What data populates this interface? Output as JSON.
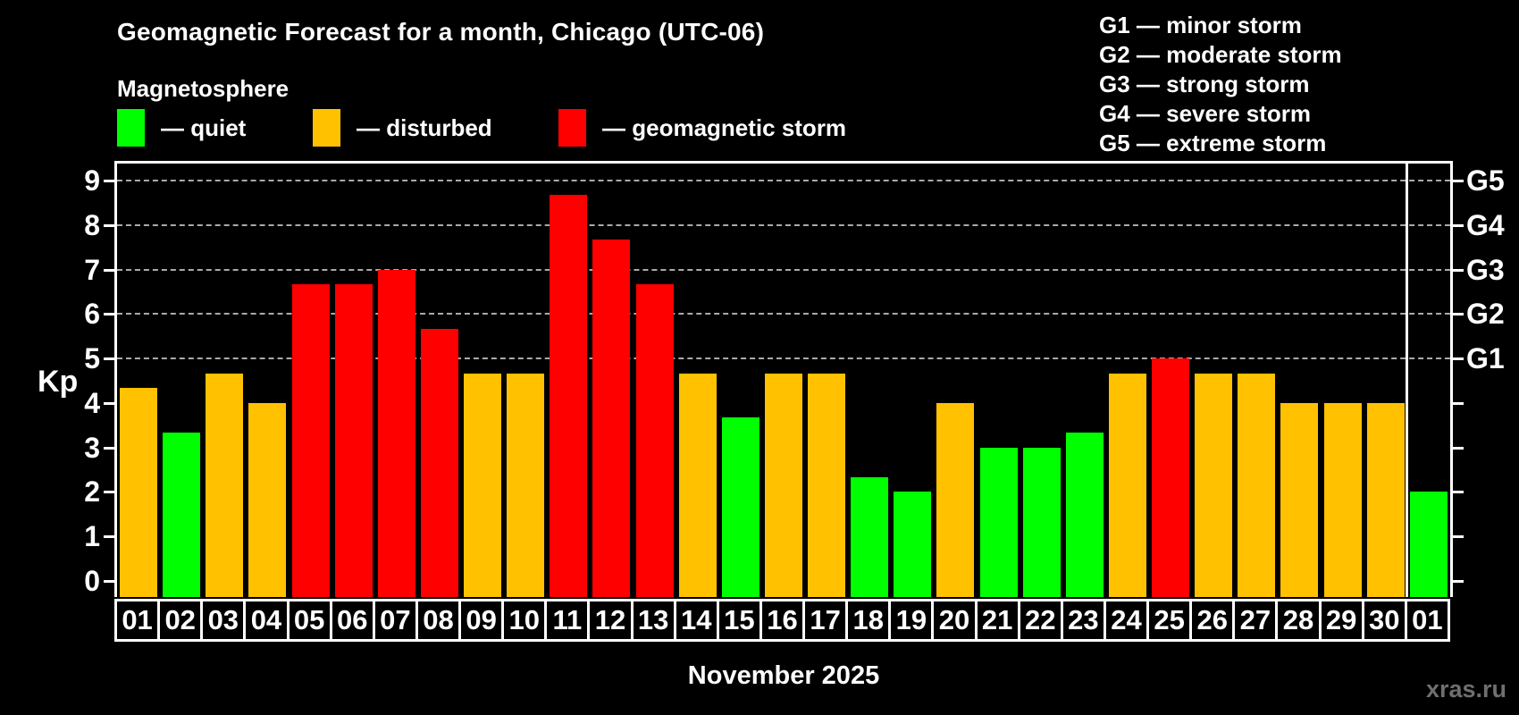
{
  "subtitle": "Magnetosphere",
  "legend": {
    "quiet_label": "— quiet",
    "disturbed_label": "— disturbed",
    "storm_label": "— geomagnetic storm"
  },
  "g_legend": [
    "G1 — minor storm",
    "G2 — moderate storm",
    "G3 — strong storm",
    "G4 — severe storm",
    "G5 — extreme storm"
  ],
  "colors": {
    "quiet": "#00ff00",
    "disturbed": "#ffc100",
    "storm": "#ff0000",
    "grid": "#aaaaaa",
    "axis": "#ffffff",
    "watermark": "#6f6f6f"
  },
  "watermark": "xras.ru",
  "chart_data": {
    "type": "bar",
    "title": "Geomagnetic Forecast for a month, Chicago (UTC-06)",
    "ylabel": "Kp",
    "xlabel": "November 2025",
    "ylim": [
      0,
      9
    ],
    "grid": "dashed horizontal at Kp 5-9 only",
    "legend_position": "top",
    "y_ticks": [
      0,
      1,
      2,
      3,
      4,
      5,
      6,
      7,
      8,
      9
    ],
    "g_levels": [
      {
        "label": "G1",
        "kp": 5
      },
      {
        "label": "G2",
        "kp": 6
      },
      {
        "label": "G3",
        "kp": 7
      },
      {
        "label": "G4",
        "kp": 8
      },
      {
        "label": "G5",
        "kp": 9
      }
    ],
    "categories": [
      "01",
      "02",
      "03",
      "04",
      "05",
      "06",
      "07",
      "08",
      "09",
      "10",
      "11",
      "12",
      "13",
      "14",
      "15",
      "16",
      "17",
      "18",
      "19",
      "20",
      "21",
      "22",
      "23",
      "24",
      "25",
      "26",
      "27",
      "28",
      "29",
      "30",
      "01"
    ],
    "values": [
      4.33,
      3.33,
      4.67,
      4.0,
      6.67,
      6.67,
      7.0,
      5.67,
      4.67,
      4.67,
      8.67,
      7.67,
      6.67,
      4.67,
      3.67,
      4.67,
      4.67,
      2.33,
      2.0,
      4.0,
      3.0,
      3.0,
      3.33,
      4.67,
      5.0,
      4.67,
      4.67,
      4.0,
      4.0,
      4.0,
      2.0
    ],
    "statuses": [
      "disturbed",
      "quiet",
      "disturbed",
      "disturbed",
      "storm",
      "storm",
      "storm",
      "storm",
      "disturbed",
      "disturbed",
      "storm",
      "storm",
      "storm",
      "disturbed",
      "quiet",
      "disturbed",
      "disturbed",
      "quiet",
      "quiet",
      "disturbed",
      "quiet",
      "quiet",
      "quiet",
      "disturbed",
      "storm",
      "disturbed",
      "disturbed",
      "disturbed",
      "disturbed",
      "disturbed",
      "quiet"
    ],
    "month_separator_index": 30
  }
}
